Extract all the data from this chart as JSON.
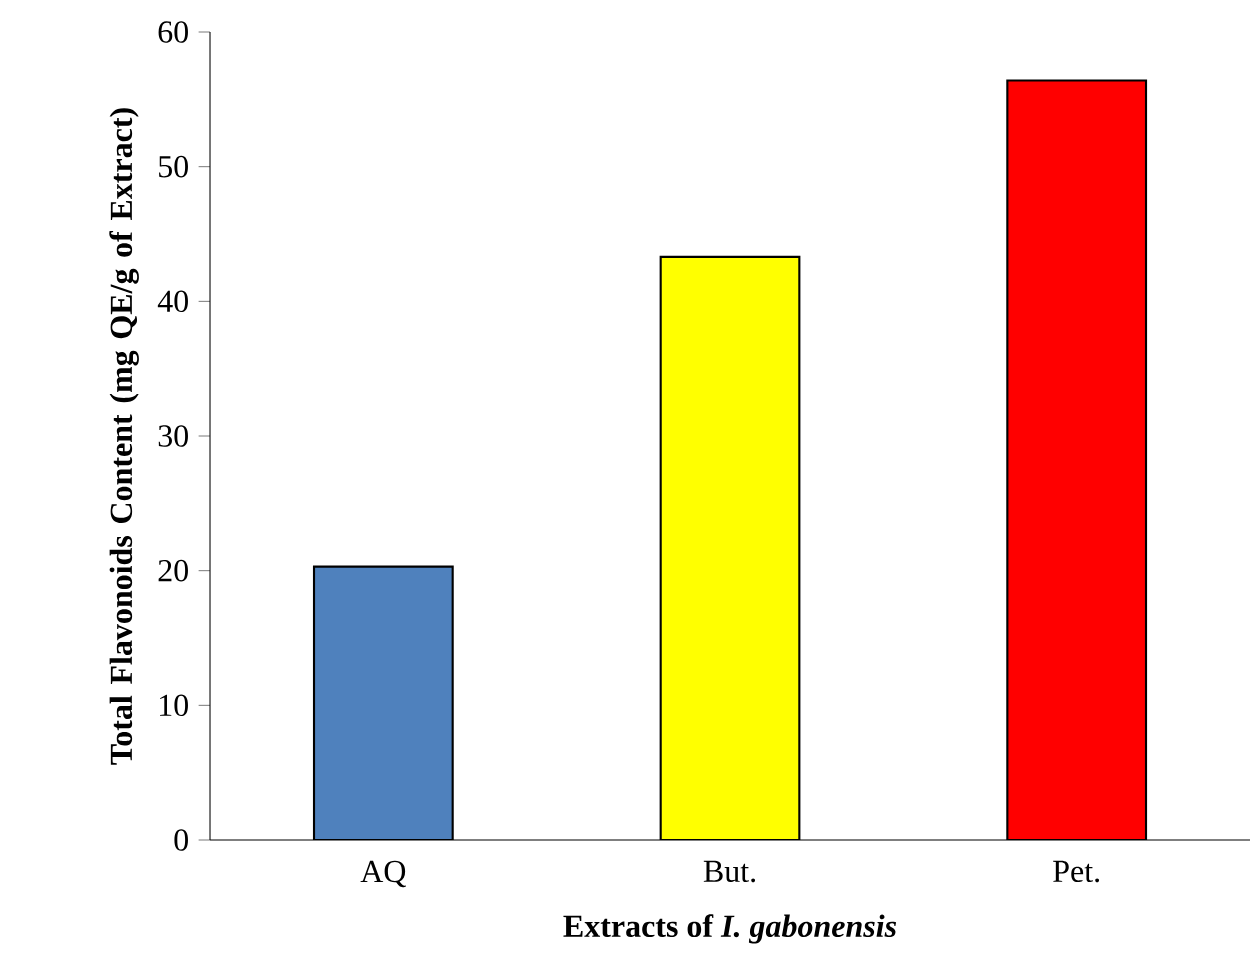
{
  "chart_data": {
    "type": "bar",
    "xlabel": "Extracts of *I. gabonensis*",
    "ylabel": "Total Flavonoids Content (mg QE/g of Extract)",
    "categories": [
      "AQ",
      "But.",
      "Pet."
    ],
    "values": [
      20.3,
      43.3,
      56.4
    ],
    "colors": [
      "#4f81bd",
      "#ffff00",
      "#ff0000"
    ],
    "ylim": [
      0,
      60
    ],
    "yticks": [
      0,
      10,
      20,
      30,
      40,
      50,
      60
    ]
  }
}
